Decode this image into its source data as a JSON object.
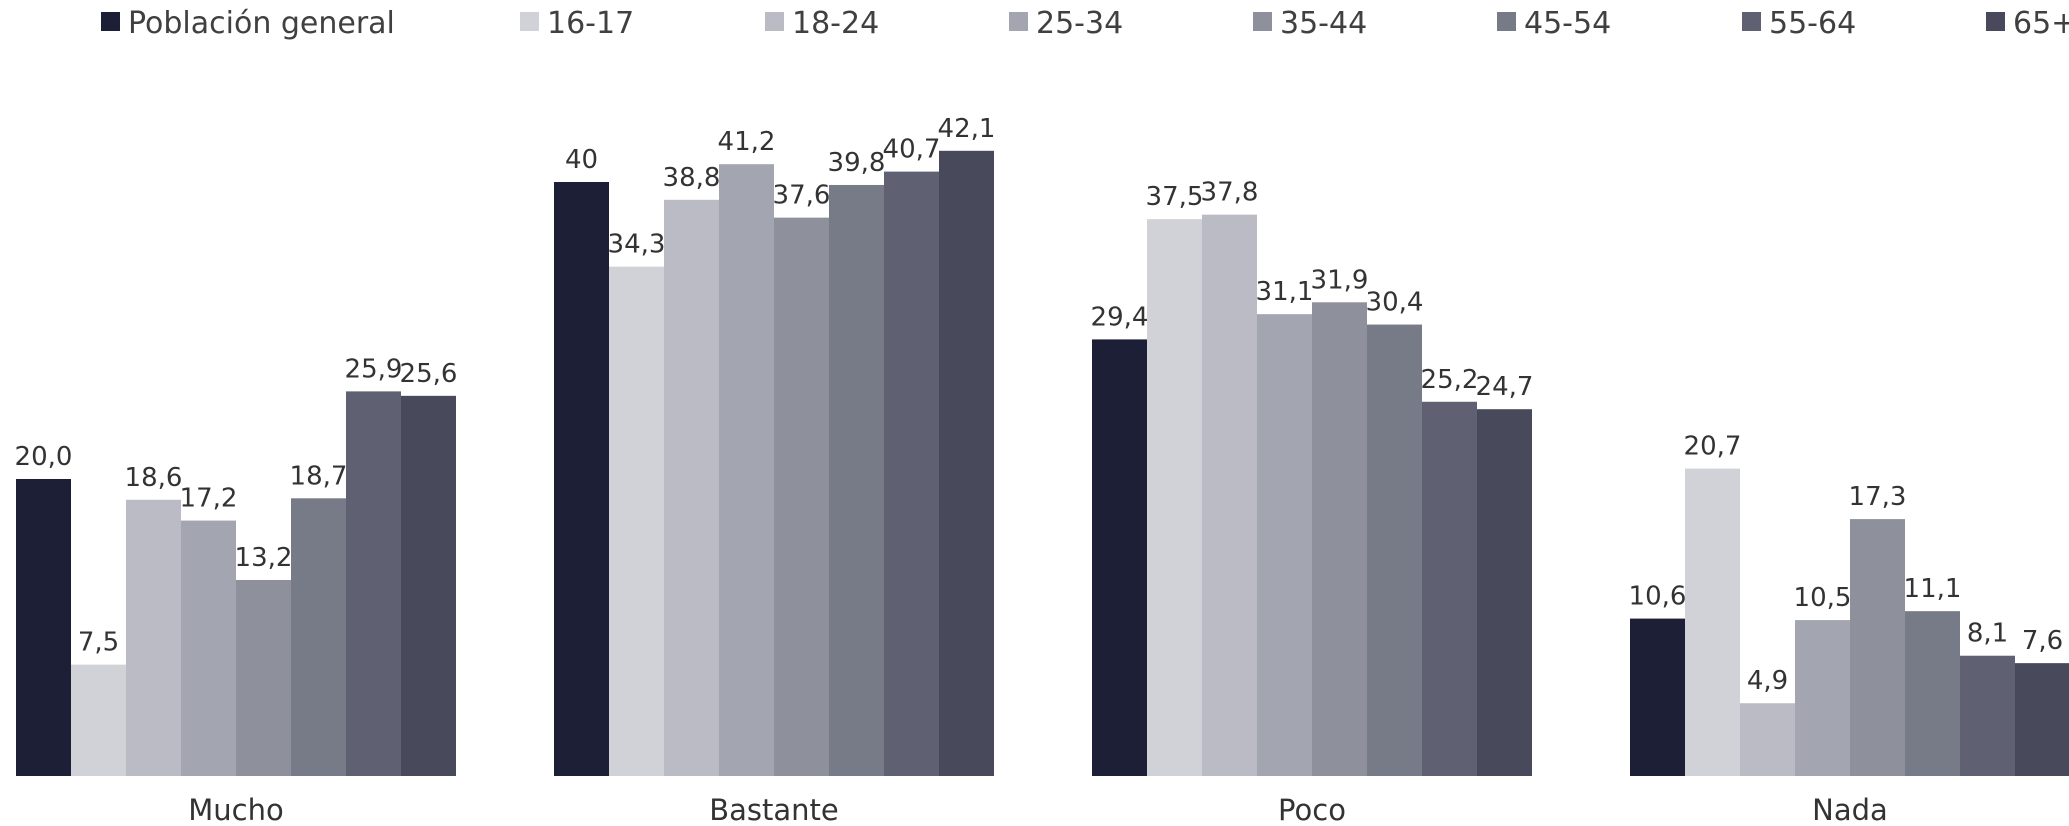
{
  "chart_data": {
    "type": "bar",
    "title": "",
    "xlabel": "",
    "ylabel": "",
    "ylim": [
      0,
      45
    ],
    "grid": false,
    "legend_position": "top",
    "categories": [
      "Mucho",
      "Bastante",
      "Poco",
      "Nada"
    ],
    "series": [
      {
        "name": "Población general",
        "color": "#1c1f36",
        "values": [
          20.0,
          40,
          29.4,
          10.6
        ],
        "labels": [
          "20,0",
          "40",
          "29,4",
          "10,6"
        ]
      },
      {
        "name": "16-17",
        "color": "#d1d2d7",
        "values": [
          7.5,
          34.3,
          37.5,
          20.7
        ],
        "labels": [
          "7,5",
          "34,3",
          "37,5",
          "20,7"
        ]
      },
      {
        "name": "18-24",
        "color": "#babbc4",
        "values": [
          18.6,
          38.8,
          37.8,
          4.9
        ],
        "labels": [
          "18,6",
          "38,8",
          "37,8",
          "4,9"
        ]
      },
      {
        "name": "25-34",
        "color": "#a3a6b0",
        "values": [
          17.2,
          41.2,
          31.1,
          10.5
        ],
        "labels": [
          "17,2",
          "41,2",
          "31,1",
          "10,5"
        ]
      },
      {
        "name": "35-44",
        "color": "#8e909c",
        "values": [
          13.2,
          37.6,
          31.9,
          17.3
        ],
        "labels": [
          "13,2",
          "37,6",
          "31,9",
          "17,3"
        ]
      },
      {
        "name": "45-54",
        "color": "#777a87",
        "values": [
          18.7,
          39.8,
          30.4,
          11.1
        ],
        "labels": [
          "18,7",
          "39,8",
          "30,4",
          "11,1"
        ]
      },
      {
        "name": "55-64",
        "color": "#5f6173",
        "values": [
          25.9,
          40.7,
          25.2,
          8.1
        ],
        "labels": [
          "25,9",
          "40,7",
          "25,2",
          "8,1"
        ]
      },
      {
        "name": "65+",
        "color": "#484a5c",
        "values": [
          25.6,
          42.1,
          24.7,
          7.6
        ],
        "labels": [
          "25,6",
          "42,1",
          "24,7",
          "7,6"
        ]
      }
    ]
  }
}
